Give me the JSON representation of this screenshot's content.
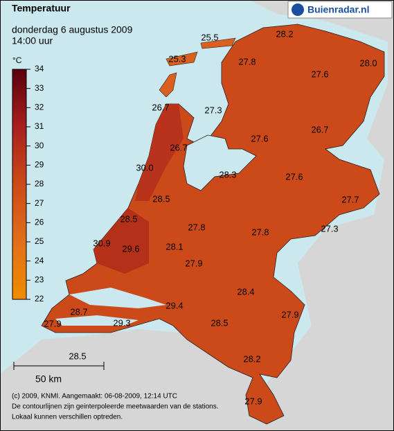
{
  "header": {
    "title": "Temperatuur",
    "date": "donderdag 6 augustus 2009",
    "time": "14:00 uur"
  },
  "logo": "Buienradar.nl",
  "legend": {
    "unit": "°C",
    "ticks": [
      22,
      23,
      24,
      25,
      26,
      27,
      28,
      29,
      30,
      31,
      32,
      33,
      34
    ]
  },
  "stations": [
    "25.5",
    "28.2",
    "25.3",
    "27.8",
    "28.0",
    "27.6",
    "26.7",
    "27.3",
    "26.7",
    "27.6",
    "26.7",
    "30.0",
    "28.3",
    "27.6",
    "28.5",
    "27.7",
    "28.5",
    "27.8",
    "27.8",
    "27.3",
    "30.9",
    "29.6",
    "28.1",
    "27.9",
    "28.4",
    "29.4",
    "28.7",
    "27.9",
    "27.9",
    "29.3",
    "28.5",
    "28.5",
    "28.2",
    "27.9"
  ],
  "scale": "50 km",
  "footer": [
    "(c) 2009, KNMI. Aangemaakt: 06-08-2009, 12:14 UTC",
    "De contourlijnen zijn geinterpoleerde meetwaarden van de stations.",
    "Lokaal kunnen verschillen optreden."
  ]
}
